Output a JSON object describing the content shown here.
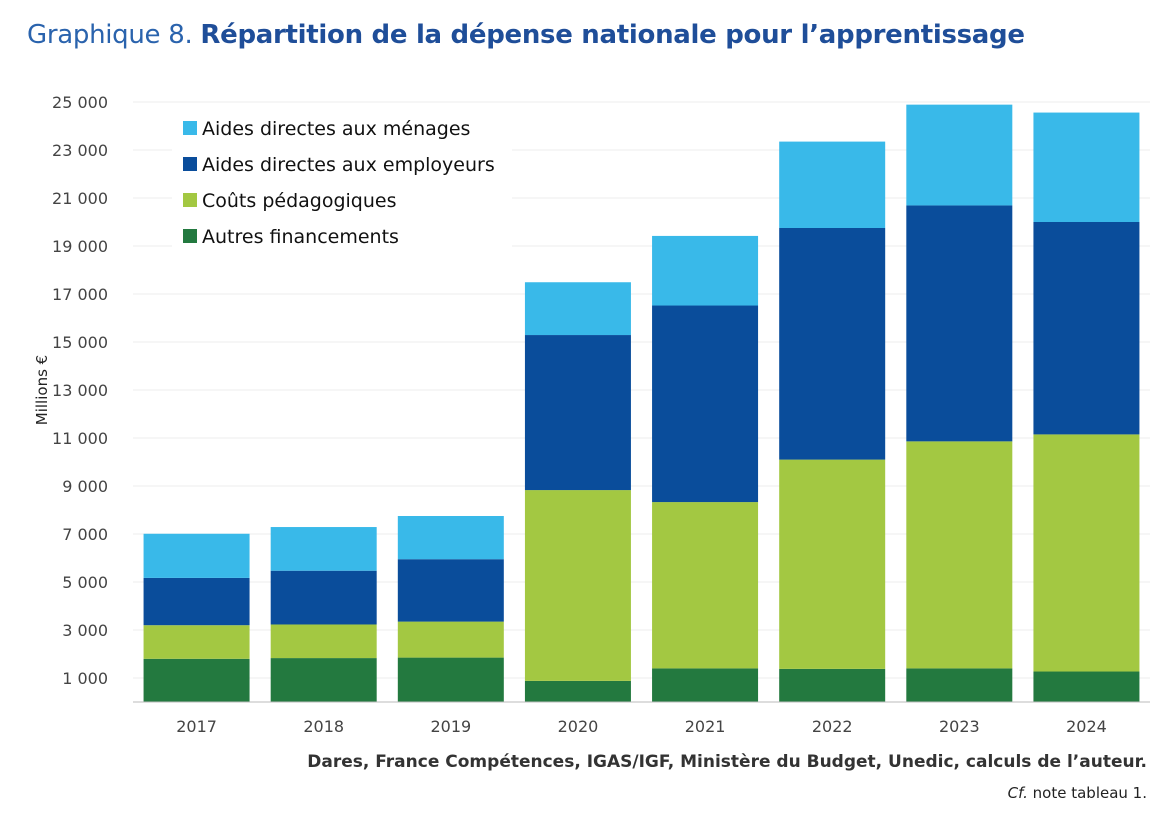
{
  "title": {
    "prefix": "Graphique 8.",
    "main": "Répartition de la dépense nationale pour l’apprentissage"
  },
  "footer": {
    "source": "Dares, France Compétences, IGAS/IGF, Ministère du Budget, Unedic, calculs de l’auteur.",
    "note_italic": "Cf.",
    "note_rest": " note tableau 1."
  },
  "chart_data": {
    "type": "bar",
    "stacked": true,
    "title": "Répartition de la dépense nationale pour l’apprentissage",
    "xlabel": "",
    "ylabel": "Millions €",
    "ylim": [
      0,
      25000
    ],
    "yticks": [
      1000,
      3000,
      5000,
      7000,
      9000,
      11000,
      13000,
      15000,
      17000,
      19000,
      21000,
      23000,
      25000
    ],
    "ytick_labels": [
      "1 000",
      "3 000",
      "5 000",
      "7 000",
      "9 000",
      "11 000",
      "13 000",
      "15 000",
      "17 000",
      "19 000",
      "21 000",
      "23 000",
      "25 000"
    ],
    "grid": true,
    "legend_position": "top-left",
    "categories": [
      "2017",
      "2018",
      "2019",
      "2020",
      "2021",
      "2022",
      "2023",
      "2024"
    ],
    "series": [
      {
        "name": "Autres financements",
        "color": "#23793f",
        "values": [
          1800,
          1830,
          1850,
          880,
          1400,
          1380,
          1400,
          1270
        ]
      },
      {
        "name": "Coûts pédagogiques",
        "color": "#a3c842",
        "values": [
          1400,
          1400,
          1500,
          7950,
          6930,
          8720,
          9460,
          9880
        ]
      },
      {
        "name": "Aides directes aux employeurs",
        "color": "#0a4d9b",
        "values": [
          1970,
          2240,
          2600,
          6460,
          8190,
          9650,
          9830,
          8850
        ]
      },
      {
        "name": "Aides directes aux ménages",
        "color": "#39b9e9",
        "values": [
          1840,
          1820,
          1800,
          2200,
          2900,
          3600,
          4200,
          4560
        ]
      }
    ]
  }
}
